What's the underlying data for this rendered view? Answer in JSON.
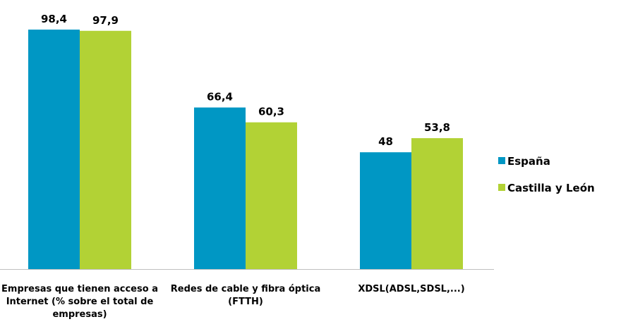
{
  "chart_data": {
    "type": "bar",
    "categories": [
      "Empresas que tienen acceso a Internet (% sobre el total de empresas)",
      "Redes de cable y fibra óptica (FTTH)",
      "XDSL(ADSL,SDSL,...)"
    ],
    "series": [
      {
        "name": "España",
        "color": "#0097c4",
        "values": [
          98.4,
          66.4,
          48
        ],
        "value_labels": [
          "98,4",
          "66,4",
          "48"
        ]
      },
      {
        "name": "Castilla y León",
        "color": "#b2d235",
        "values": [
          97.9,
          60.3,
          53.8
        ],
        "value_labels": [
          "97,9",
          "60,3",
          "53,8"
        ]
      }
    ],
    "ylim": [
      0,
      100
    ],
    "legend": "right"
  }
}
